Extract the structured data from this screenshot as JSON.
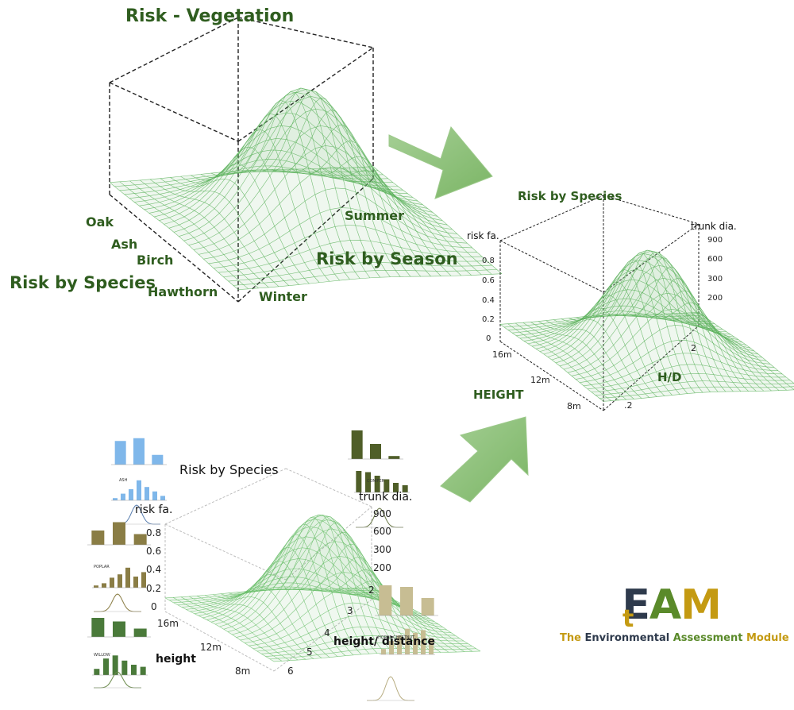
{
  "top_plot": {
    "title": "Risk - Vegetation",
    "species_axis_title": "Risk by Species",
    "season_axis_title": "Risk by Season",
    "species_labels": [
      "Oak",
      "Ash",
      "Birch",
      "Hawthorn"
    ],
    "season_labels": [
      "Summer",
      "Winter"
    ]
  },
  "right_plot": {
    "title": "Risk by Species",
    "z_axis_title": "risk fa.",
    "z_ticks": [
      "0.8",
      "0.6",
      "0.4",
      "0.2",
      "0"
    ],
    "right_axis_title": "trunk dia.",
    "right_ticks": [
      "900",
      "600",
      "300",
      "200"
    ],
    "height_axis_title": "HEIGHT",
    "height_ticks": [
      "16m",
      "12m",
      "8m"
    ],
    "hd_axis_title": "H/D",
    "hd_ticks": [
      "2",
      ".2"
    ]
  },
  "bottom_plot": {
    "title": "Risk by Species",
    "z_axis_title": "risk fa.",
    "z_ticks": [
      "0.8",
      "0.6",
      "0.4",
      "0.2",
      "0"
    ],
    "right_axis_title": "trunk dia.",
    "right_ticks": [
      "900",
      "600",
      "300",
      "200"
    ],
    "height_axis_title": "height",
    "height_ticks": [
      "16m",
      "12m",
      "8m"
    ],
    "hd_axis_title": "height/ distance",
    "hd_ticks": [
      "2",
      "3",
      "4",
      "5",
      "6"
    ]
  },
  "mini_charts": {
    "ash": "ASH",
    "poplar": "POPLAR",
    "willow": "WILLOW",
    "conifer": "CONIFER",
    "horse_chestnut": "HORSE CHESTNUT"
  },
  "logo": {
    "letters_prefix": "t",
    "letters_e": "E",
    "letters_a": "A",
    "letters_m": "M",
    "tagline_the": "The",
    "tagline_env": "Environmental",
    "tagline_assess": "Assessment",
    "tagline_module": "Module"
  },
  "colors": {
    "surface": "#6fbf6f",
    "arrow": "#8cc07a",
    "label_green": "#2f5d1f",
    "logo_dark": "#2e3a4c",
    "logo_green": "#5a8a2a",
    "logo_gold": "#c49a12"
  }
}
